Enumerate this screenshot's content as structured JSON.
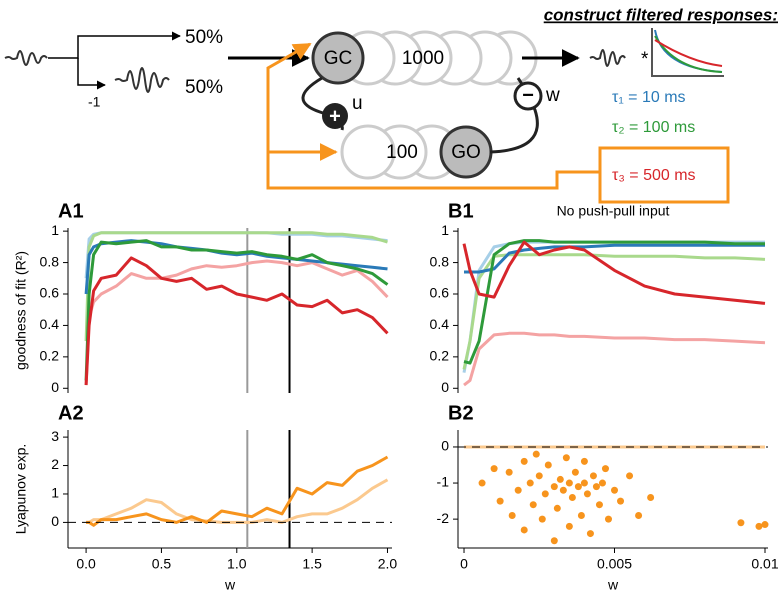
{
  "diagram": {
    "heading": "construct filtered responses:",
    "split": [
      "50%",
      "50%"
    ],
    "inversion": "-1",
    "gc": "GC",
    "gc_count": "1000",
    "go": "GO",
    "go_count": "100",
    "u": "u",
    "w": "w",
    "plus": "+",
    "minus": "−",
    "conv": "*",
    "taus": [
      "τ₁ = 10 ms",
      "τ₂ = 100 ms",
      "τ₃ = 500 ms"
    ]
  },
  "chart_data": [
    {
      "type": "line",
      "label": "A1",
      "ylabel": "goodness of fit (R²)",
      "xlim": [
        -0.12,
        2.03
      ],
      "ylim": [
        -0.03,
        1.02
      ],
      "yticks": [
        0,
        0.2,
        0.4,
        0.6,
        0.8,
        1
      ],
      "vlines": [
        {
          "value": 1.07,
          "color": "#999999"
        },
        {
          "value": 1.35,
          "color": "#000000"
        }
      ],
      "x": [
        0,
        0.02,
        0.05,
        0.1,
        0.2,
        0.3,
        0.4,
        0.5,
        0.6,
        0.7,
        0.8,
        0.9,
        1.0,
        1.1,
        1.2,
        1.3,
        1.4,
        1.5,
        1.6,
        1.7,
        1.8,
        1.9,
        2.0
      ],
      "series": [
        {
          "color": "#a6cfe8",
          "values": [
            0.7,
            0.95,
            0.98,
            0.99,
            0.99,
            0.99,
            0.99,
            0.99,
            0.99,
            0.99,
            0.99,
            0.99,
            0.99,
            0.99,
            0.99,
            0.98,
            0.98,
            0.98,
            0.97,
            0.97,
            0.96,
            0.95,
            0.94
          ]
        },
        {
          "color": "#a9d98c",
          "values": [
            0.3,
            0.9,
            0.97,
            0.99,
            0.99,
            0.99,
            0.99,
            0.99,
            0.99,
            0.99,
            0.99,
            0.99,
            0.99,
            0.99,
            0.99,
            0.99,
            0.99,
            0.99,
            0.98,
            0.98,
            0.97,
            0.96,
            0.93
          ]
        },
        {
          "color": "#f4a3a3",
          "values": [
            0.02,
            0.45,
            0.55,
            0.6,
            0.65,
            0.73,
            0.7,
            0.7,
            0.72,
            0.76,
            0.78,
            0.77,
            0.78,
            0.8,
            0.81,
            0.8,
            0.78,
            0.8,
            0.76,
            0.72,
            0.75,
            0.68,
            0.58
          ]
        },
        {
          "color": "#2a7ab8",
          "values": [
            0.6,
            0.85,
            0.9,
            0.92,
            0.93,
            0.94,
            0.93,
            0.92,
            0.9,
            0.89,
            0.88,
            0.86,
            0.85,
            0.86,
            0.84,
            0.83,
            0.82,
            0.81,
            0.8,
            0.79,
            0.78,
            0.77,
            0.76
          ]
        },
        {
          "color": "#2e9a3a",
          "values": [
            0.05,
            0.6,
            0.85,
            0.93,
            0.92,
            0.93,
            0.94,
            0.9,
            0.9,
            0.88,
            0.88,
            0.87,
            0.86,
            0.87,
            0.85,
            0.84,
            0.82,
            0.85,
            0.8,
            0.78,
            0.76,
            0.73,
            0.66
          ]
        },
        {
          "color": "#d7262b",
          "values": [
            0.02,
            0.4,
            0.62,
            0.7,
            0.72,
            0.83,
            0.78,
            0.7,
            0.68,
            0.7,
            0.63,
            0.65,
            0.6,
            0.58,
            0.56,
            0.6,
            0.53,
            0.52,
            0.56,
            0.48,
            0.5,
            0.45,
            0.35
          ]
        }
      ]
    },
    {
      "type": "line",
      "label": "A2",
      "ylabel": "Lyapunov exp.",
      "xlabel": "w",
      "xlim": [
        -0.12,
        2.03
      ],
      "ylim": [
        -0.9,
        3.25
      ],
      "yticks": [
        0,
        1,
        2,
        3
      ],
      "xticks": [
        {
          "value": 0,
          "label": "0.0"
        },
        0.5,
        {
          "value": 1,
          "label": "1.0"
        },
        1.5,
        {
          "value": 2,
          "label": "2.0"
        }
      ],
      "hline": 0,
      "vlines": [
        {
          "value": 1.07,
          "color": "#999999"
        },
        {
          "value": 1.35,
          "color": "#000000"
        }
      ],
      "x": [
        0,
        0.02,
        0.05,
        0.1,
        0.2,
        0.3,
        0.4,
        0.5,
        0.6,
        0.7,
        0.8,
        0.9,
        1.0,
        1.1,
        1.2,
        1.3,
        1.4,
        1.5,
        1.6,
        1.7,
        1.8,
        1.9,
        2.0
      ],
      "series": [
        {
          "color": "#fbc98e",
          "values": [
            0,
            0,
            0.1,
            0.1,
            0.3,
            0.5,
            0.8,
            0.7,
            0.3,
            0.1,
            0.05,
            0,
            0,
            0,
            0.1,
            0,
            0.2,
            0.3,
            0.3,
            0.5,
            0.8,
            1.2,
            1.5
          ]
        },
        {
          "color": "#f7941d",
          "values": [
            0,
            0,
            -0.1,
            0.1,
            0.1,
            0.2,
            0.3,
            0.1,
            0,
            0.2,
            0,
            0.4,
            0.3,
            0.2,
            0.5,
            0.3,
            1.2,
            1.0,
            1.4,
            1.3,
            1.8,
            2.0,
            2.3
          ]
        }
      ]
    },
    {
      "type": "line",
      "label": "B1",
      "title": "No push-pull input",
      "xlim": [
        -0.0002,
        0.0101
      ],
      "ylim": [
        -0.03,
        1.02
      ],
      "yticks": [
        0,
        0.2,
        0.4,
        0.6,
        0.8,
        1
      ],
      "x": [
        0,
        0.0002,
        0.0005,
        0.001,
        0.0015,
        0.002,
        0.0025,
        0.003,
        0.0035,
        0.004,
        0.005,
        0.006,
        0.007,
        0.008,
        0.009,
        0.01
      ],
      "series": [
        {
          "color": "#a6cfe8",
          "values": [
            0.1,
            0.3,
            0.75,
            0.9,
            0.92,
            0.93,
            0.93,
            0.93,
            0.93,
            0.93,
            0.93,
            0.93,
            0.93,
            0.93,
            0.93,
            0.93
          ]
        },
        {
          "color": "#a9d98c",
          "values": [
            0.12,
            0.3,
            0.7,
            0.84,
            0.85,
            0.85,
            0.85,
            0.85,
            0.85,
            0.85,
            0.84,
            0.84,
            0.84,
            0.83,
            0.83,
            0.82
          ]
        },
        {
          "color": "#f4a3a3",
          "values": [
            0.02,
            0.05,
            0.25,
            0.34,
            0.35,
            0.35,
            0.34,
            0.34,
            0.33,
            0.33,
            0.32,
            0.32,
            0.31,
            0.31,
            0.3,
            0.29
          ]
        },
        {
          "color": "#2a7ab8",
          "values": [
            0.74,
            0.74,
            0.74,
            0.76,
            0.86,
            0.88,
            0.89,
            0.9,
            0.9,
            0.9,
            0.91,
            0.91,
            0.91,
            0.91,
            0.91,
            0.91
          ]
        },
        {
          "color": "#2e9a3a",
          "values": [
            0.17,
            0.16,
            0.3,
            0.85,
            0.92,
            0.94,
            0.94,
            0.93,
            0.93,
            0.93,
            0.93,
            0.93,
            0.93,
            0.93,
            0.92,
            0.92
          ]
        },
        {
          "color": "#d7262b",
          "values": [
            0.92,
            0.75,
            0.6,
            0.58,
            0.78,
            0.93,
            0.85,
            0.88,
            0.9,
            0.88,
            0.75,
            0.65,
            0.6,
            0.58,
            0.56,
            0.54
          ]
        }
      ]
    },
    {
      "type": "scatter",
      "label": "B2",
      "xlabel": "w",
      "xlim": [
        -0.0002,
        0.0101
      ],
      "ylim": [
        -2.8,
        0.47
      ],
      "yticks": [
        0,
        -1,
        -2
      ],
      "xticks": [
        0,
        0.005,
        0.01
      ],
      "hline": 0,
      "series": [
        {
          "color": "#fbc98e",
          "x": [
            0,
            0.01
          ],
          "values": [
            0,
            0
          ]
        },
        {
          "color": "#f7941d",
          "x": [
            0.0006,
            0.001,
            0.0012,
            0.0015,
            0.0016,
            0.0018,
            0.002,
            0.002,
            0.0022,
            0.0023,
            0.0024,
            0.0025,
            0.0026,
            0.0027,
            0.0028,
            0.003,
            0.003,
            0.0031,
            0.0032,
            0.0033,
            0.0034,
            0.0035,
            0.0035,
            0.0036,
            0.0037,
            0.0038,
            0.0039,
            0.004,
            0.004,
            0.0041,
            0.0042,
            0.0043,
            0.0044,
            0.0045,
            0.0046,
            0.0047,
            0.0048,
            0.005,
            0.0052,
            0.0055,
            0.0058,
            0.0062,
            0.0092,
            0.0098,
            0.01
          ],
          "values": [
            -1.0,
            -0.6,
            -1.5,
            -0.7,
            -1.9,
            -1.2,
            -0.4,
            -2.3,
            -1.0,
            -1.6,
            -0.2,
            -0.8,
            -2.0,
            -1.3,
            -0.5,
            -1.1,
            -2.6,
            -1.7,
            -0.9,
            -1.2,
            -0.3,
            -1.0,
            -2.2,
            -1.4,
            -0.7,
            -1.1,
            -1.9,
            -1.0,
            -0.4,
            -1.3,
            -2.4,
            -0.8,
            -1.1,
            -1.6,
            -1.0,
            -0.6,
            -2.0,
            -1.2,
            -1.5,
            -0.8,
            -1.9,
            -1.4,
            -2.1,
            -2.2,
            -2.15
          ]
        }
      ]
    }
  ]
}
